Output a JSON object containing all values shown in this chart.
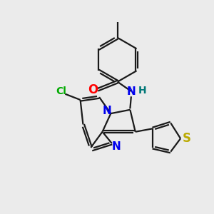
{
  "background_color": "#ebebeb",
  "bond_color": "#1a1a1a",
  "atom_colors": {
    "O": "#ff0000",
    "N": "#0000ee",
    "Cl": "#00aa00",
    "S": "#bbaa00",
    "H": "#007777"
  },
  "figsize": [
    3.0,
    3.0
  ],
  "dpi": 100
}
